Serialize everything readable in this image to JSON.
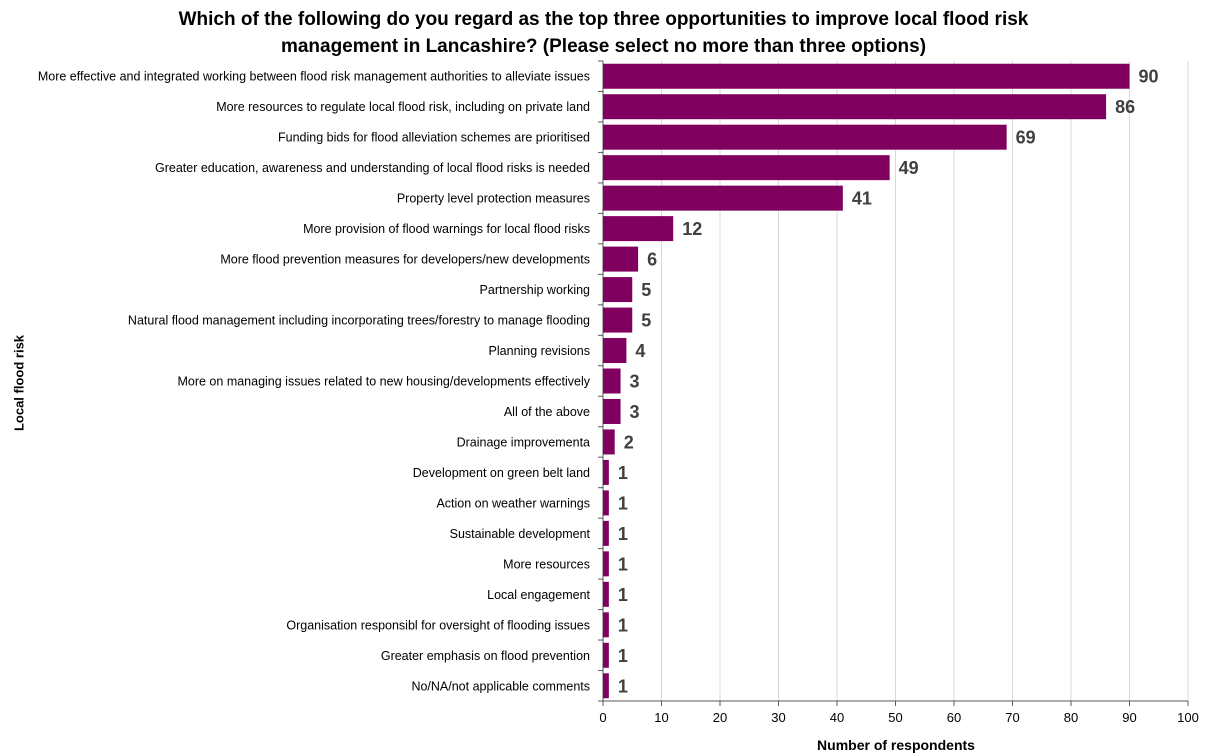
{
  "chart_data": {
    "type": "bar",
    "orientation": "horizontal",
    "title_lines": [
      "Which of the following do you regard as the top three opportunities to improve local flood risk",
      "management in Lancashire? (Please select no more than three options)"
    ],
    "xlabel": "Number of respondents",
    "ylabel": "Local flood risk",
    "xlim": [
      0,
      100
    ],
    "xticks": [
      "0",
      "10",
      "20",
      "30",
      "40",
      "50",
      "60",
      "70",
      "80",
      "90",
      "100"
    ],
    "grid": "vertical",
    "bar_color": "#800060",
    "categories": [
      "More effective and integrated working between flood risk management authorities to alleviate issues",
      "More resources to regulate local flood risk, including on private land",
      "Funding bids for flood alleviation schemes are prioritised",
      "Greater education, awareness and understanding of local flood risks is needed",
      "Property level protection measures",
      "More provision of flood warnings for local flood risks",
      "More flood prevention measures for developers/new developments",
      "Partnership working",
      "Natural flood management including incorporating trees/forestry to manage flooding",
      "Planning revisions",
      "More on managing issues related to new housing/developments effectively",
      "All of the above",
      "Drainage improvementa",
      "Development on green belt land",
      "Action on weather warnings",
      "Sustainable development",
      "More resources",
      "Local engagement",
      "Organisation responsibl for oversight of flooding issues",
      "Greater emphasis on flood prevention",
      "No/NA/not applicable comments"
    ],
    "values": [
      90,
      86,
      69,
      49,
      41,
      12,
      6,
      5,
      5,
      4,
      3,
      3,
      2,
      1,
      1,
      1,
      1,
      1,
      1,
      1,
      1
    ],
    "data_labels": [
      "90",
      "86",
      "69",
      "49",
      "41",
      "12",
      "6",
      "5",
      "5",
      "4",
      "3",
      "3",
      "2",
      "1",
      "1",
      "1",
      "1",
      "1",
      "1",
      "1",
      "1"
    ]
  }
}
